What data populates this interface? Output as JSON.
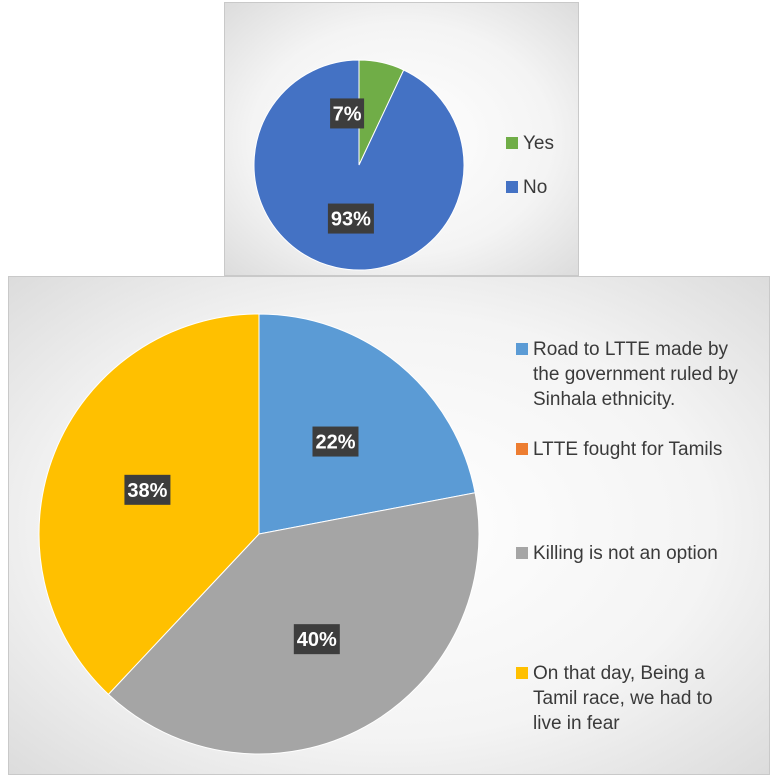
{
  "chart_data": [
    {
      "type": "pie",
      "categories": [
        "Yes",
        "No"
      ],
      "values": [
        7,
        93
      ],
      "data_labels": [
        "7%",
        "93%"
      ],
      "colors": [
        "#70ad47",
        "#4472c4"
      ],
      "legend": "right"
    },
    {
      "type": "pie",
      "categories": [
        "Road to LTTE made by the government ruled by Sinhala ethnicity.",
        "LTTE fought for Tamils",
        "Killing is not an option",
        "On that day, Being a Tamil race, we had to live in fear"
      ],
      "values": [
        22,
        0,
        40,
        38
      ],
      "data_labels": [
        "22%",
        "",
        "40%",
        "38%"
      ],
      "colors": [
        "#5b9bd5",
        "#ed7d31",
        "#a5a5a5",
        "#ffc000"
      ],
      "legend": "right"
    }
  ]
}
